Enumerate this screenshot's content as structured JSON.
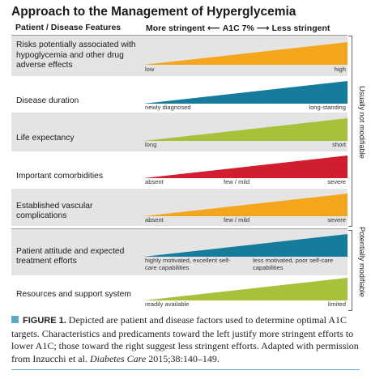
{
  "title": "Approach to the Management of Hyperglycemia",
  "header": {
    "left": "Patient / Disease Features",
    "more": "More stringent",
    "arrow_left": "⟵",
    "center": "A1C 7%",
    "arrow_right": "⟶",
    "less": "Less stringent"
  },
  "rows": [
    {
      "feature": "Risks potentially associated with hypoglycemia and other drug adverse effects",
      "labels": [
        "low",
        "",
        "high"
      ],
      "color": "#f3a51c"
    },
    {
      "feature": "Disease duration",
      "labels": [
        "newly diagnosed",
        "",
        "long-standing"
      ],
      "color": "#157c9c"
    },
    {
      "feature": "Life expectancy",
      "labels": [
        "long",
        "",
        "short"
      ],
      "color": "#a8c13a"
    },
    {
      "feature": "Important comorbidities",
      "labels": [
        "absent",
        "few / mild",
        "severe"
      ],
      "color": "#d01e2e"
    },
    {
      "feature": "Established vascular complications",
      "labels": [
        "absent",
        "few / mild",
        "severe"
      ],
      "color": "#f3a51c"
    },
    {
      "feature": "Patient attitude and expected treatment efforts",
      "labels": [
        "highly motivated, excellent self-care capabilities",
        "less motivated, poor self-care capabilities",
        ""
      ],
      "color": "#157c9c"
    },
    {
      "feature": "Resources and support system",
      "labels": [
        "readily available",
        "",
        "limited"
      ],
      "color": "#a8c13a"
    }
  ],
  "groups": {
    "top": "Usually not modifiable",
    "bottom": "Potentially modifiable"
  },
  "caption": {
    "label": "FIGURE 1.",
    "text_before": " Depicted are patient and disease factors used to determine optimal A1C targets. Characteristics and predicaments toward the left justify more stringent efforts to lower A1C; those toward the right suggest less stringent efforts. Adapted with permission from Inzucchi et al. ",
    "journal": "Diabetes Care",
    "text_after": " 2015;38:140–149."
  }
}
